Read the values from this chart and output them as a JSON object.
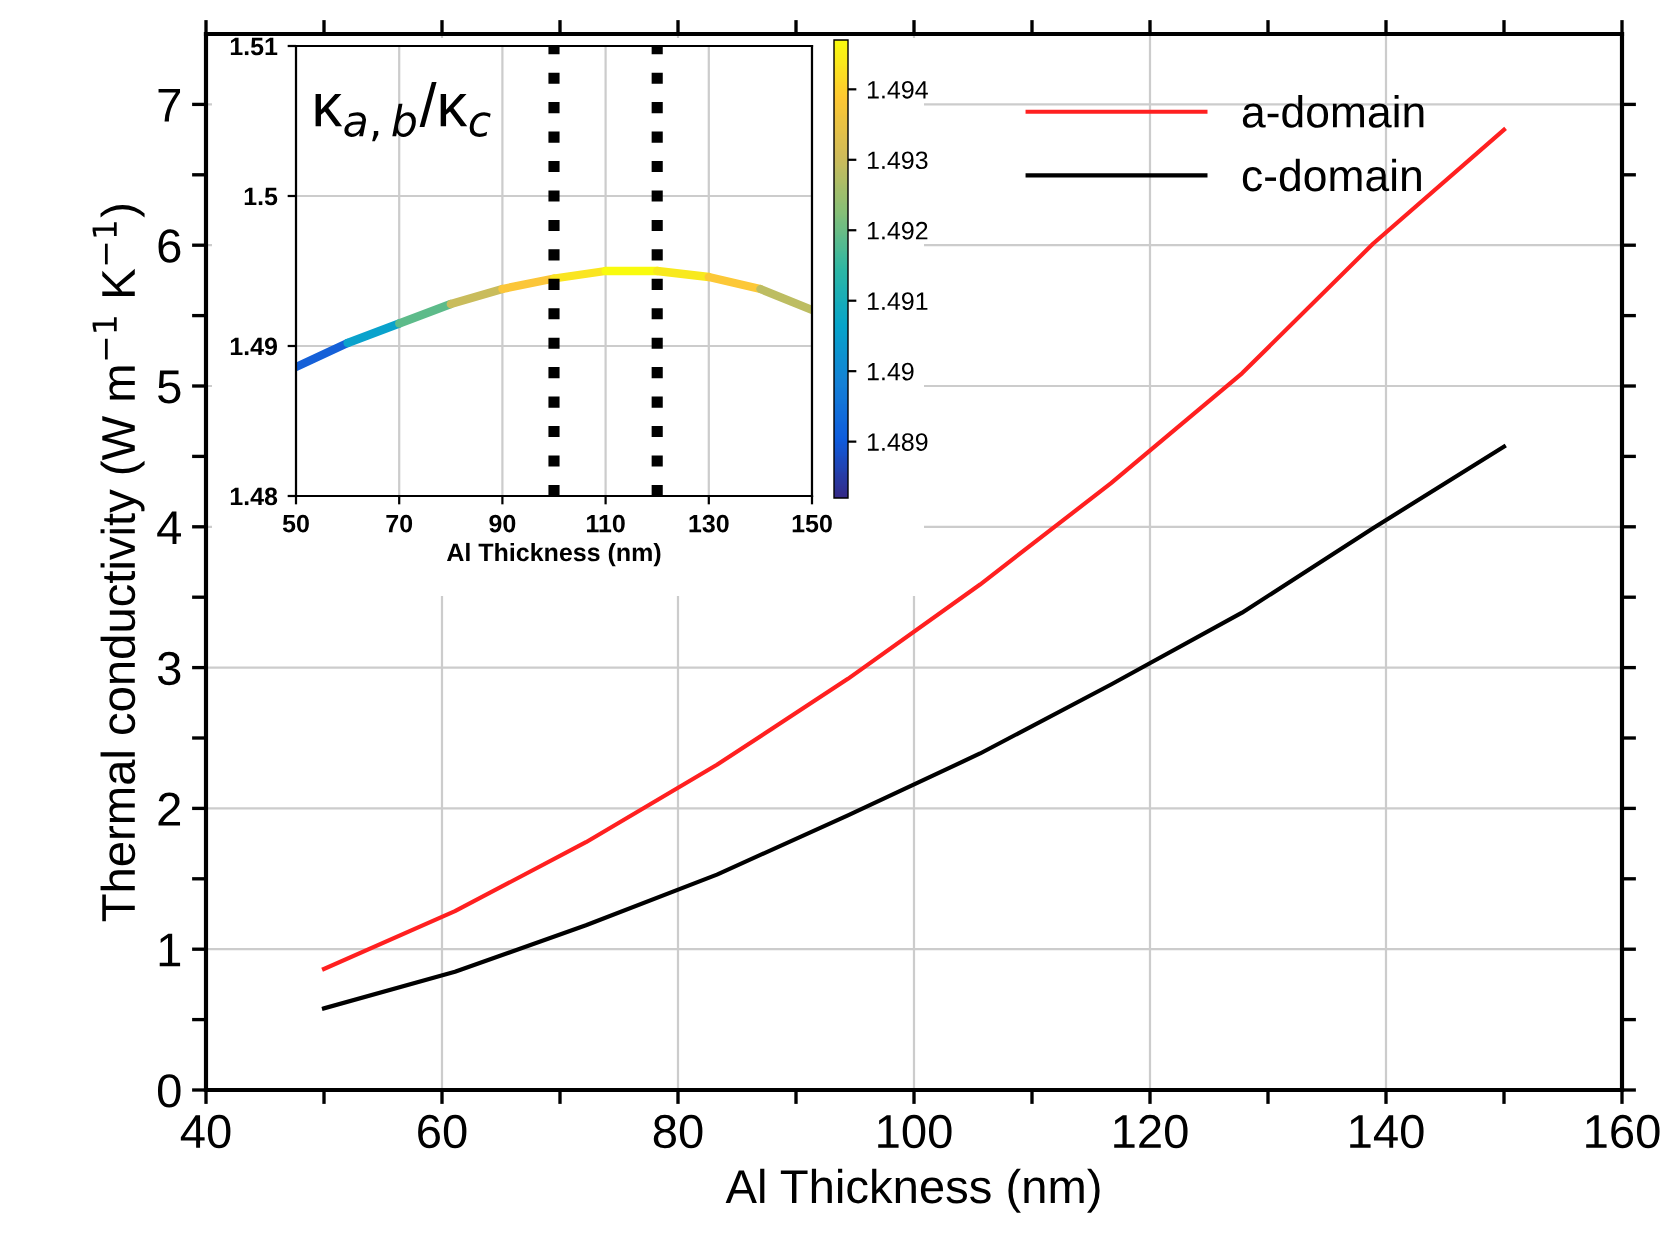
{
  "chart_data": [
    {
      "type": "line",
      "xlabel": "Al Thickness (nm)",
      "ylabel": "Thermal conductivity (W m$^{−1}$ K$^{−1}$)",
      "x": [
        50,
        61.1,
        72.2,
        83.3,
        94.4,
        105.6,
        116.7,
        127.8,
        138.9,
        150
      ],
      "series": [
        {
          "name": "a-domain",
          "color": "#ff2020",
          "values": [
            0.86,
            1.27,
            1.76,
            2.31,
            2.92,
            3.59,
            4.31,
            5.09,
            6.01,
            6.82
          ]
        },
        {
          "name": "c-domain",
          "color": "#000000",
          "values": [
            0.58,
            0.84,
            1.17,
            1.53,
            1.95,
            2.39,
            2.88,
            3.39,
            3.99,
            4.57
          ]
        }
      ],
      "xlim": [
        40,
        160
      ],
      "xticks": [
        40,
        {
          "value": 50,
          "label": null
        },
        60,
        {
          "value": 70,
          "label": null
        },
        80,
        {
          "value": 90,
          "label": null
        },
        100,
        {
          "value": 110,
          "label": null
        },
        120,
        {
          "value": 130,
          "label": null
        },
        140,
        {
          "value": 150,
          "label": null
        },
        160
      ],
      "ylim": [
        0,
        7.5
      ],
      "yticks": [
        0,
        {
          "value": 0.5,
          "label": null
        },
        1,
        {
          "value": 1.5,
          "label": null
        },
        2,
        {
          "value": 2.5,
          "label": null
        },
        3,
        {
          "value": 3.5,
          "label": null
        },
        4,
        {
          "value": 4.5,
          "label": null
        },
        5,
        {
          "value": 5.5,
          "label": null
        },
        6,
        {
          "value": 6.5,
          "label": null
        },
        7
      ],
      "grid": true,
      "legend": "top right",
      "line_style": "solid",
      "marker": "none"
    },
    {
      "type": "line",
      "title": "κ$_{a,b}$/κ$_{c}$",
      "xlabel": "Al Thickness (nm)",
      "series": [
        {
          "x": [
            50,
            60
          ],
          "values": [
            1.4886,
            1.4902
          ],
          "color": "#1560d8"
        },
        {
          "x": [
            60,
            70
          ],
          "values": [
            1.4902,
            1.4915
          ],
          "color": "#0aa2cc"
        },
        {
          "x": [
            70,
            80
          ],
          "values": [
            1.4915,
            1.4928
          ],
          "color": "#5dbb8a"
        },
        {
          "x": [
            80,
            90
          ],
          "values": [
            1.4928,
            1.4938
          ],
          "color": "#c9bc5c"
        },
        {
          "x": [
            90,
            100
          ],
          "values": [
            1.4938,
            1.4945
          ],
          "color": "#fbc63a"
        },
        {
          "x": [
            100,
            110
          ],
          "values": [
            1.4945,
            1.495
          ],
          "color": "#fae521"
        },
        {
          "x": [
            110,
            120
          ],
          "values": [
            1.495,
            1.495
          ],
          "color": "#f9fb0e"
        },
        {
          "x": [
            120,
            130
          ],
          "values": [
            1.495,
            1.4946
          ],
          "color": "#f8e91d"
        },
        {
          "x": [
            130,
            140
          ],
          "values": [
            1.4946,
            1.4938
          ],
          "color": "#fcc837"
        },
        {
          "x": [
            140,
            150
          ],
          "values": [
            1.4938,
            1.4924
          ],
          "color": "#bdbd62"
        }
      ],
      "clim": [
        1.4882,
        1.4947
      ],
      "cticks": [
        1.489,
        1.49,
        1.491,
        1.492,
        1.493,
        1.494
      ],
      "xlim": [
        50,
        150
      ],
      "xticks": [
        50,
        70,
        90,
        110,
        130,
        150
      ],
      "ylim": [
        1.48,
        1.51
      ],
      "yticks": [
        1.48,
        1.49,
        1.5,
        1.51
      ],
      "ref_lines": [
        {
          "axis": "x",
          "value": 100,
          "color": "#000000",
          "line_style": "dotted"
        },
        {
          "axis": "x",
          "value": 120,
          "color": "#000000",
          "line_style": "dotted"
        }
      ],
      "grid": true
    }
  ]
}
